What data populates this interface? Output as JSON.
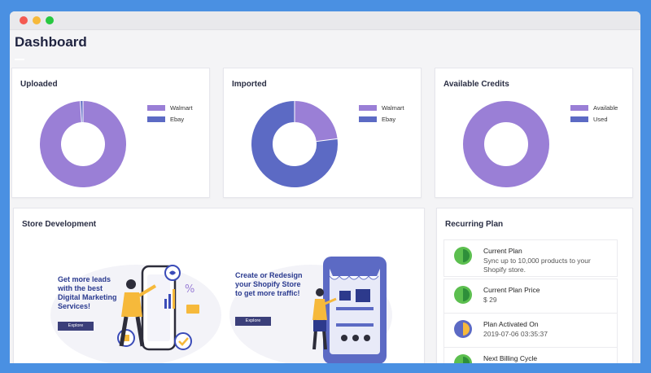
{
  "page_title": "Dashboard",
  "colors": {
    "walmart": "#9a7fd6",
    "ebay": "#5c6ac4",
    "available": "#9a7fd6",
    "used": "#5c6ac4"
  },
  "cards": {
    "uploaded": {
      "title": "Uploaded",
      "legend": [
        {
          "label": "Walmart"
        },
        {
          "label": "Ebay"
        }
      ],
      "values": {
        "walmart": 99,
        "ebay": 1
      }
    },
    "imported": {
      "title": "Imported",
      "legend": [
        {
          "label": "Walmart"
        },
        {
          "label": "Ebay"
        }
      ],
      "values": {
        "walmart": 23,
        "ebay": 77
      }
    },
    "credits": {
      "title": "Available Credits",
      "legend": [
        {
          "label": "Available"
        },
        {
          "label": "Used"
        }
      ],
      "values": {
        "available": 100,
        "used": 0
      }
    }
  },
  "store_development": {
    "title": "Store Development",
    "promo1": {
      "lines": [
        "Get more leads",
        "with the best",
        "Digital Marketing",
        "Services!"
      ],
      "button": "Explore"
    },
    "promo2": {
      "lines": [
        "Create or Redesign",
        "your Shopify Store",
        "to get more traffic!"
      ],
      "button": "Explore"
    }
  },
  "recurring_plan": {
    "title": "Recurring Plan",
    "items": [
      {
        "label": "Current Plan",
        "value": "Sync up to 10,000 products to your Shopify store."
      },
      {
        "label": "Current Plan Price",
        "value": "$ 29"
      },
      {
        "label": "Plan Activated On",
        "value": "2019-07-06 03:35:37"
      },
      {
        "label": "Next Billing Cycle",
        "value": ""
      }
    ]
  }
}
